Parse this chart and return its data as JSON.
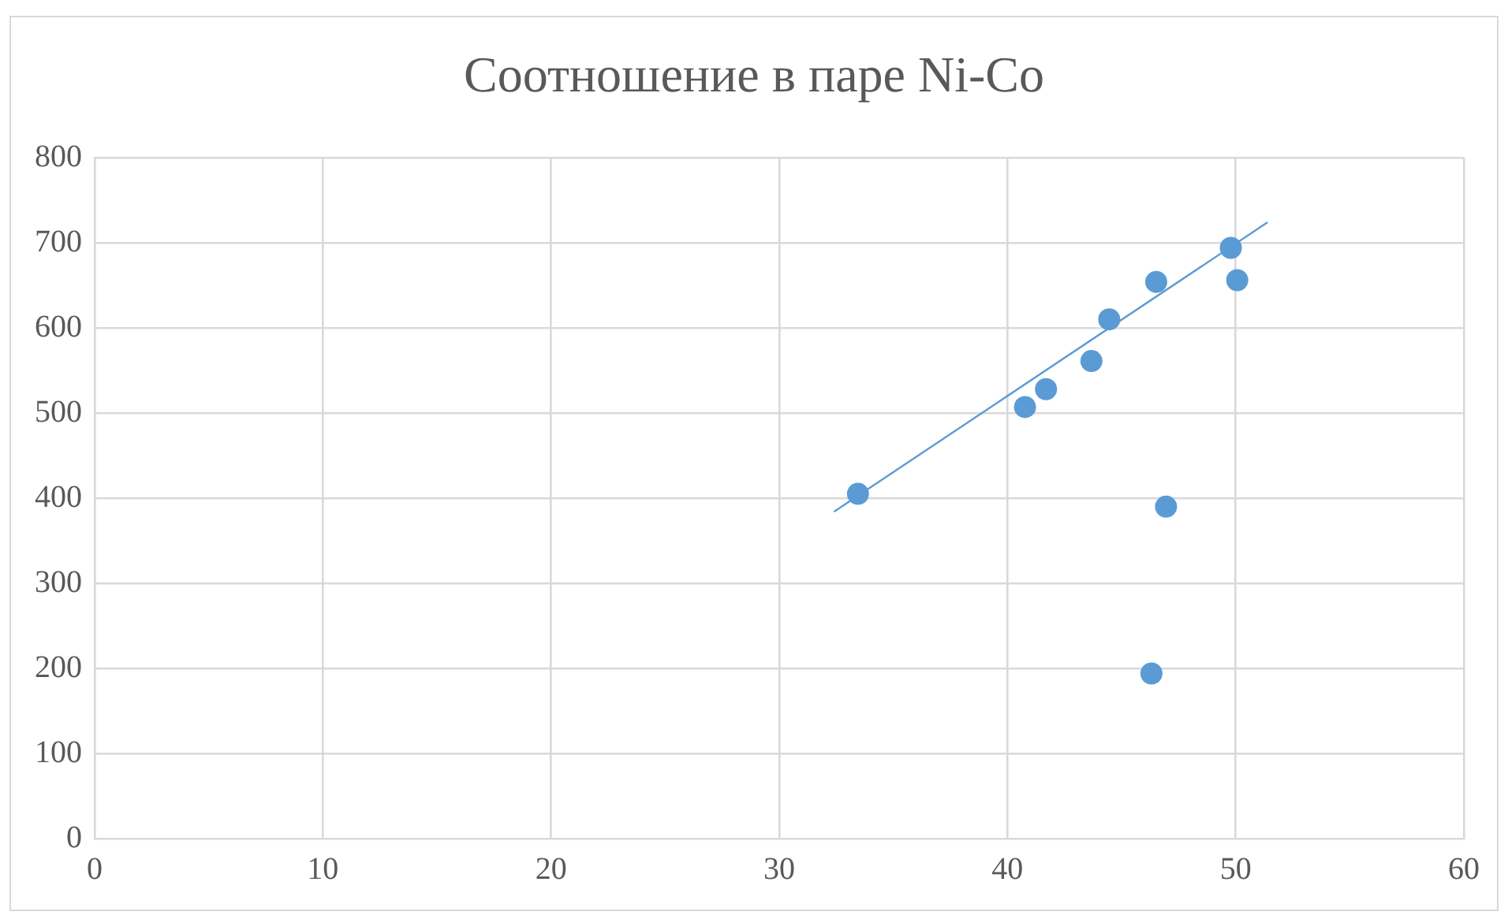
{
  "chart_data": {
    "type": "scatter",
    "title": "Соотношение в паре Ni-Co",
    "xlim": [
      0,
      60
    ],
    "xticks": [
      0,
      10,
      20,
      30,
      40,
      50,
      60
    ],
    "ylim": [
      0,
      800
    ],
    "yticks": [
      0,
      100,
      200,
      300,
      400,
      500,
      600,
      700,
      800
    ],
    "grid": true,
    "legend": false,
    "marker": "circle",
    "series": [
      {
        "type": "scatter",
        "color": "#5b9bd5",
        "x": [
          33.45,
          40.77,
          41.69,
          43.68,
          44.46,
          46.52,
          49.79,
          50.07,
          46.95,
          46.31
        ],
        "values": [
          405,
          507,
          528,
          561,
          610,
          654,
          694,
          656,
          390,
          194
        ]
      },
      {
        "type": "line",
        "color": "#5b9bd5",
        "x": [
          32.4,
          51.4
        ],
        "values": [
          384,
          724
        ],
        "marker": "none",
        "line_style": "solid"
      }
    ]
  }
}
